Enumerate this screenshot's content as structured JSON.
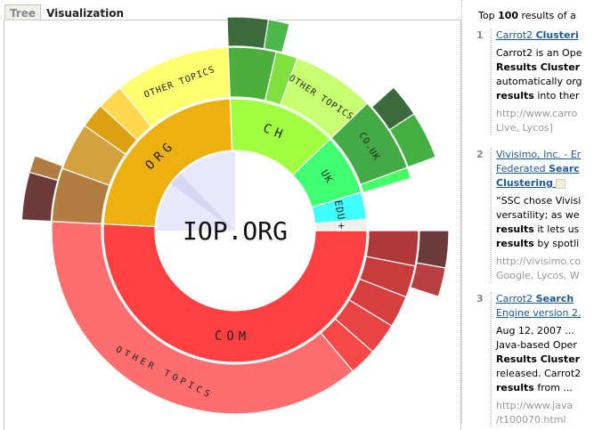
{
  "tabs": [
    {
      "label": "Tree",
      "active": false
    },
    {
      "label": "Visualization",
      "active": true
    }
  ],
  "chart": {
    "center_label": "IOP.ORG",
    "ring1": [
      {
        "label": "COM",
        "start": 0,
        "share": 50.8,
        "color": "#ff4040"
      },
      {
        "label": "ORG",
        "start": 50.8,
        "share": 23.6,
        "color": "#ecb010"
      },
      {
        "label": "CH",
        "start": 74.4,
        "share": 13.4,
        "color": "#a0ff40"
      },
      {
        "label": "UK",
        "start": 87.8,
        "share": 7.5,
        "color": "#40ff70"
      },
      {
        "label": "EDU",
        "start": 95.3,
        "share": 3.3,
        "color": "#40ffff"
      },
      {
        "label": "+",
        "start": 98.6,
        "share": 1.4,
        "color": "#eeeeee"
      }
    ],
    "ring2": [
      {
        "label": "",
        "start": 0,
        "share": 3.1,
        "color": "#b03838"
      },
      {
        "label": "",
        "start": 3.1,
        "share": 2.8,
        "color": "#c83c3c"
      },
      {
        "label": "",
        "start": 5.9,
        "share": 2.8,
        "color": "#d84040"
      },
      {
        "label": "",
        "start": 8.7,
        "share": 2.8,
        "color": "#e84444"
      },
      {
        "label": "",
        "start": 11.5,
        "share": 2.4,
        "color": "#f84848"
      },
      {
        "label": "OTHER TOPICS",
        "start": 13.9,
        "share": 36.9,
        "color": "#ff6e6e"
      },
      {
        "label": "",
        "start": 50.8,
        "share": 4.7,
        "color": "#b07c40"
      },
      {
        "label": "",
        "start": 55.5,
        "share": 4.2,
        "color": "#d4a040"
      },
      {
        "label": "",
        "start": 59.7,
        "share": 2.2,
        "color": "#dca010"
      },
      {
        "label": "",
        "start": 61.9,
        "share": 2.3,
        "color": "#ffd850"
      },
      {
        "label": "OTHER TOPICS",
        "start": 64.2,
        "share": 10.2,
        "color": "#ffff70"
      },
      {
        "label": "",
        "start": 74.4,
        "share": 4.2,
        "color": "#4caf3c"
      },
      {
        "label": "",
        "start": 78.6,
        "share": 1.9,
        "color": "#80e040"
      },
      {
        "label": "OTHER TOPICS",
        "start": 80.5,
        "share": 7.3,
        "color": "#c8ff70"
      },
      {
        "label": "CO.UK",
        "start": 87.8,
        "share": 6.6,
        "color": "#44aa44"
      },
      {
        "label": "",
        "start": 94.4,
        "share": 1.0,
        "color": "#44ff66"
      }
    ],
    "ring3": [
      {
        "start": 0,
        "share": 2.8,
        "color": "#6b3a3a"
      },
      {
        "start": 2.8,
        "share": 2.2,
        "color": "#b84040"
      },
      {
        "start": 50.8,
        "share": 3.6,
        "color": "#6b3a3a"
      },
      {
        "start": 54.4,
        "share": 1.3,
        "color": "#b07c40"
      },
      {
        "start": 74.4,
        "share": 3.1,
        "color": "#3c6a3c"
      },
      {
        "start": 77.5,
        "share": 1.6,
        "color": "#4cb84c"
      },
      {
        "start": 88.3,
        "share": 2.5,
        "color": "#3c6a3c"
      },
      {
        "start": 90.8,
        "share": 3.6,
        "color": "#44b044"
      }
    ]
  },
  "results_panel": {
    "header_prefix": "Top ",
    "header_count": "100",
    "header_suffix": " results of a",
    "results": [
      {
        "num": "1",
        "title_a": "Carrot2 ",
        "title_b": "Clusteri",
        "lines": [
          [
            "Carrot2 is an Ope",
            ""
          ],
          [
            "",
            "Results Cluster"
          ],
          [
            "automatically org",
            ""
          ],
          [
            "",
            "results",
            " into ther"
          ]
        ],
        "url": "http://www.carro",
        "sources": "Live, Lycos]"
      },
      {
        "num": "2",
        "title_a": "Vivisimo, Inc. - Er",
        "title_line2_a": "Federated ",
        "title_line2_b": "Searc",
        "title_line3": "Clustering",
        "lines": [
          [
            "“SSC chose Vivisi",
            ""
          ],
          [
            "versatility; as we",
            ""
          ],
          [
            "",
            "results",
            " it lets us"
          ],
          [
            "",
            "results",
            " by spotli"
          ]
        ],
        "url": "http://vivisimo.co",
        "sources": "Google, Lycos, W"
      },
      {
        "num": "3",
        "title_a": "Carrot2 ",
        "title_b": "Search",
        "title_line2_a": "Engine version 2.",
        "lines": [
          [
            "Aug 12, 2007 ...",
            ""
          ],
          [
            "Java-based Oper",
            ""
          ],
          [
            "",
            "Results Cluster"
          ],
          [
            "released. Carrot2",
            ""
          ],
          [
            "",
            "results",
            " from ..."
          ]
        ],
        "url": "http://www.java",
        "sources": "/t100070.html"
      }
    ]
  }
}
